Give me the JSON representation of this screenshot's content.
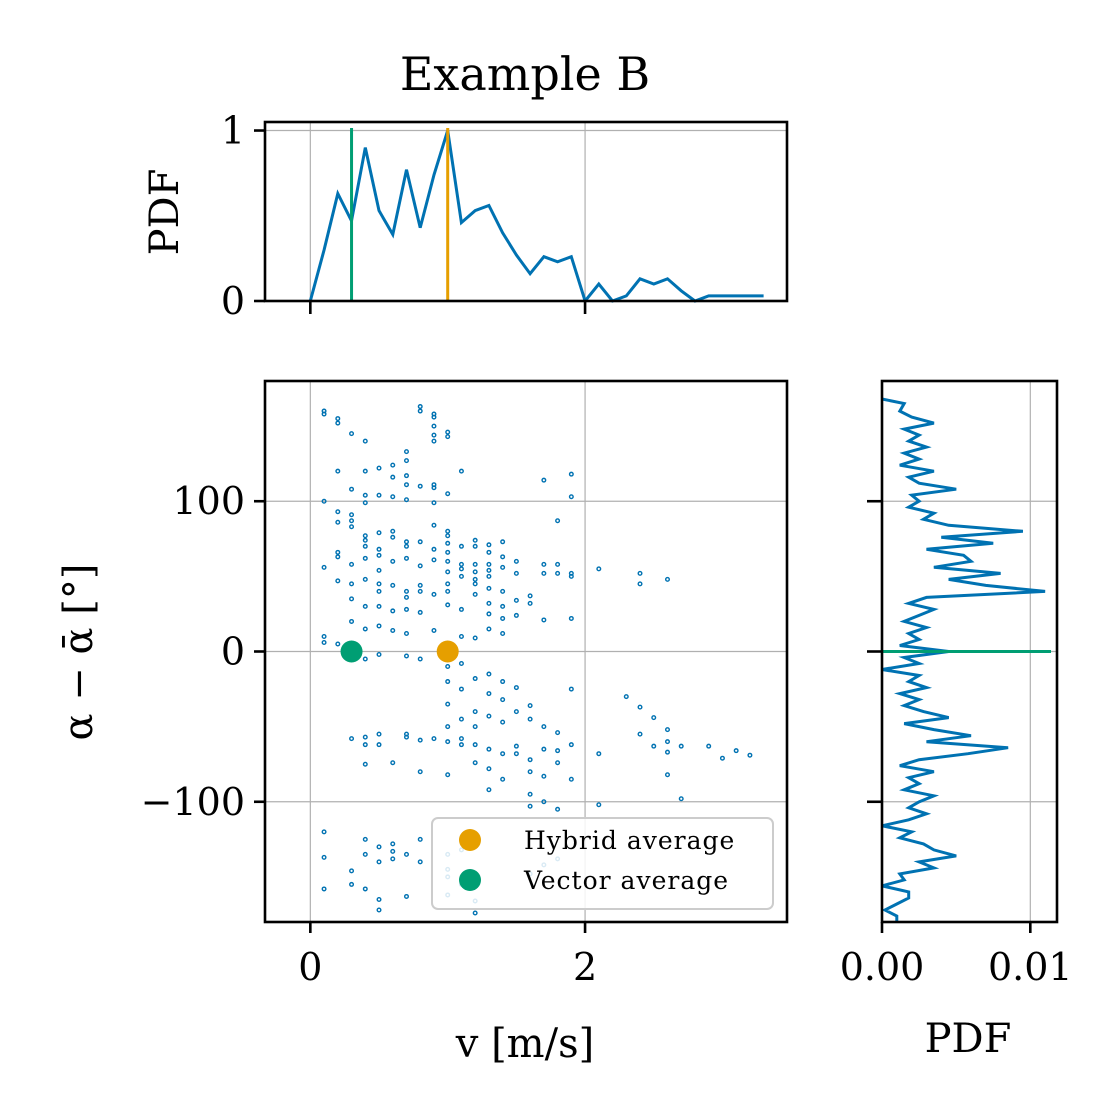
{
  "colors": {
    "scatter": "#0072B2",
    "hybrid": "#E69F00",
    "vector": "#009E73"
  },
  "chart_data": {
    "type": "scatter",
    "title": "Example B",
    "main": {
      "xlabel": "v [m/s]",
      "ylabel": "α − ᾱ [°]",
      "xlim": [
        -0.33,
        3.47
      ],
      "ylim": [
        -180,
        180
      ],
      "xticks": [
        0,
        2
      ],
      "yticks": [
        -100,
        0,
        100
      ],
      "xtick_labels": [
        "0",
        "2"
      ],
      "ytick_labels": [
        "−100",
        "0",
        "100"
      ],
      "points": [
        [
          0.1,
          160
        ],
        [
          0.1,
          158
        ],
        [
          0.2,
          155
        ],
        [
          0.2,
          152
        ],
        [
          0.3,
          145
        ],
        [
          0.4,
          140
        ],
        [
          0.8,
          163
        ],
        [
          0.8,
          160
        ],
        [
          0.9,
          158
        ],
        [
          0.9,
          156
        ],
        [
          0.9,
          150
        ],
        [
          0.9,
          144
        ],
        [
          0.9,
          140
        ],
        [
          1.0,
          146
        ],
        [
          1.0,
          143
        ],
        [
          0.7,
          133
        ],
        [
          0.7,
          127
        ],
        [
          0.2,
          120
        ],
        [
          0.4,
          120
        ],
        [
          0.5,
          122
        ],
        [
          0.6,
          124
        ],
        [
          0.6,
          116
        ],
        [
          0.7,
          117
        ],
        [
          0.7,
          111
        ],
        [
          0.8,
          110
        ],
        [
          0.9,
          111
        ],
        [
          0.9,
          109
        ],
        [
          1.1,
          120
        ],
        [
          1.0,
          105
        ],
        [
          0.3,
          108
        ],
        [
          0.4,
          104
        ],
        [
          0.4,
          99
        ],
        [
          0.5,
          104
        ],
        [
          0.6,
          103
        ],
        [
          0.7,
          101
        ],
        [
          0.9,
          99
        ],
        [
          1.9,
          118
        ],
        [
          1.7,
          114
        ],
        [
          1.9,
          103
        ],
        [
          1.8,
          87
        ],
        [
          0.1,
          100
        ],
        [
          0.2,
          93
        ],
        [
          0.3,
          91
        ],
        [
          0.3,
          87
        ],
        [
          0.2,
          86
        ],
        [
          0.3,
          83
        ],
        [
          0.4,
          77
        ],
        [
          0.4,
          74
        ],
        [
          0.4,
          70
        ],
        [
          0.5,
          79
        ],
        [
          0.5,
          68
        ],
        [
          0.6,
          80
        ],
        [
          0.6,
          76
        ],
        [
          0.7,
          73
        ],
        [
          0.7,
          70
        ],
        [
          0.8,
          73
        ],
        [
          0.9,
          84
        ],
        [
          1.0,
          80
        ],
        [
          1.0,
          77
        ],
        [
          1.0,
          72
        ],
        [
          0.9,
          68
        ],
        [
          1.0,
          66
        ],
        [
          1.1,
          70
        ],
        [
          1.2,
          70
        ],
        [
          1.2,
          74
        ],
        [
          1.3,
          71
        ],
        [
          1.4,
          73
        ],
        [
          1.3,
          66
        ],
        [
          1.4,
          63
        ],
        [
          1.5,
          60
        ],
        [
          0.2,
          66
        ],
        [
          0.2,
          63
        ],
        [
          0.3,
          58
        ],
        [
          0.4,
          62
        ],
        [
          0.5,
          64
        ],
        [
          0.5,
          54
        ],
        [
          0.6,
          60
        ],
        [
          0.7,
          62
        ],
        [
          0.8,
          57
        ],
        [
          0.9,
          61
        ],
        [
          1.0,
          60
        ],
        [
          1.0,
          53
        ],
        [
          1.1,
          58
        ],
        [
          1.1,
          55
        ],
        [
          1.2,
          58
        ],
        [
          1.2,
          53
        ],
        [
          1.3,
          58
        ],
        [
          1.3,
          54
        ],
        [
          1.4,
          56
        ],
        [
          1.2,
          48
        ],
        [
          1.1,
          50
        ],
        [
          1.3,
          50
        ],
        [
          1.5,
          52
        ],
        [
          1.7,
          58
        ],
        [
          1.8,
          58
        ],
        [
          1.7,
          52
        ],
        [
          1.8,
          52
        ],
        [
          1.9,
          50
        ],
        [
          1.9,
          52
        ],
        [
          2.1,
          55
        ],
        [
          2.4,
          52
        ],
        [
          2.4,
          45
        ],
        [
          2.6,
          48
        ],
        [
          0.1,
          56
        ],
        [
          0.2,
          47
        ],
        [
          0.3,
          45
        ],
        [
          0.4,
          48
        ],
        [
          0.5,
          45
        ],
        [
          0.5,
          40
        ],
        [
          0.6,
          44
        ],
        [
          0.7,
          40
        ],
        [
          0.7,
          36
        ],
        [
          0.8,
          44
        ],
        [
          0.8,
          40
        ],
        [
          0.9,
          38
        ],
        [
          1.0,
          45
        ],
        [
          1.0,
          40
        ],
        [
          1.2,
          45
        ],
        [
          1.2,
          38
        ],
        [
          1.3,
          42
        ],
        [
          1.4,
          40
        ],
        [
          1.3,
          32
        ],
        [
          1.4,
          30
        ],
        [
          1.5,
          34
        ],
        [
          1.6,
          37
        ],
        [
          1.6,
          32
        ],
        [
          0.3,
          35
        ],
        [
          0.4,
          30
        ],
        [
          0.5,
          30
        ],
        [
          0.6,
          27
        ],
        [
          0.7,
          28
        ],
        [
          0.8,
          26
        ],
        [
          1.0,
          31
        ],
        [
          1.1,
          28
        ],
        [
          1.3,
          25
        ],
        [
          1.4,
          22
        ],
        [
          1.5,
          24
        ],
        [
          1.7,
          21
        ],
        [
          1.9,
          22
        ],
        [
          0.3,
          20
        ],
        [
          0.4,
          15
        ],
        [
          0.5,
          17
        ],
        [
          0.6,
          14
        ],
        [
          0.7,
          12
        ],
        [
          0.9,
          14
        ],
        [
          1.1,
          10
        ],
        [
          1.2,
          9
        ],
        [
          1.3,
          15
        ],
        [
          1.4,
          12
        ],
        [
          0.1,
          10
        ],
        [
          0.2,
          5
        ],
        [
          0.1,
          6
        ],
        [
          0.3,
          2
        ],
        [
          0.4,
          -5
        ],
        [
          0.5,
          -2
        ],
        [
          0.7,
          -3
        ],
        [
          0.8,
          -5
        ],
        [
          1.0,
          -10
        ],
        [
          1.1,
          -8
        ],
        [
          1.0,
          -20
        ],
        [
          1.1,
          -25
        ],
        [
          1.2,
          -18
        ],
        [
          1.3,
          -15
        ],
        [
          1.4,
          -20
        ],
        [
          1.3,
          -28
        ],
        [
          1.4,
          -32
        ],
        [
          1.5,
          -24
        ],
        [
          1.6,
          -36
        ],
        [
          1.5,
          -40
        ],
        [
          1.9,
          -25
        ],
        [
          1.6,
          -45
        ],
        [
          1.7,
          -50
        ],
        [
          1.8,
          -54
        ],
        [
          2.3,
          -30
        ],
        [
          2.4,
          -37
        ],
        [
          2.5,
          -44
        ],
        [
          2.6,
          -52
        ],
        [
          2.4,
          -55
        ],
        [
          1.0,
          -35
        ],
        [
          1.2,
          -40
        ],
        [
          1.1,
          -45
        ],
        [
          1.0,
          -50
        ],
        [
          1.2,
          -50
        ],
        [
          1.3,
          -43
        ],
        [
          1.4,
          -47
        ],
        [
          0.3,
          -58
        ],
        [
          0.4,
          -57
        ],
        [
          0.4,
          -62
        ],
        [
          0.5,
          -55
        ],
        [
          0.5,
          -62
        ],
        [
          0.7,
          -55
        ],
        [
          0.7,
          -57
        ],
        [
          0.8,
          -59
        ],
        [
          0.9,
          -58
        ],
        [
          1.0,
          -60
        ],
        [
          1.1,
          -58
        ],
        [
          1.1,
          -62
        ],
        [
          1.2,
          -62
        ],
        [
          1.3,
          -65
        ],
        [
          1.4,
          -68
        ],
        [
          1.5,
          -63
        ],
        [
          1.5,
          -68
        ],
        [
          1.6,
          -72
        ],
        [
          1.7,
          -65
        ],
        [
          1.8,
          -66
        ],
        [
          1.9,
          -62
        ],
        [
          2.1,
          -68
        ],
        [
          2.5,
          -63
        ],
        [
          2.6,
          -60
        ],
        [
          2.6,
          -67
        ],
        [
          2.7,
          -63
        ],
        [
          2.9,
          -63
        ],
        [
          3.0,
          -71
        ],
        [
          3.1,
          -66
        ],
        [
          3.2,
          -69
        ],
        [
          0.4,
          -75
        ],
        [
          0.6,
          -74
        ],
        [
          0.8,
          -80
        ],
        [
          1.0,
          -82
        ],
        [
          1.2,
          -74
        ],
        [
          1.3,
          -78
        ],
        [
          1.4,
          -85
        ],
        [
          1.6,
          -80
        ],
        [
          1.7,
          -83
        ],
        [
          1.8,
          -74
        ],
        [
          1.9,
          -85
        ],
        [
          2.6,
          -82
        ],
        [
          1.3,
          -92
        ],
        [
          1.6,
          -95
        ],
        [
          1.7,
          -100
        ],
        [
          1.6,
          -103
        ],
        [
          1.8,
          -105
        ],
        [
          2.1,
          -102
        ],
        [
          2.7,
          -98
        ],
        [
          0.1,
          -120
        ],
        [
          0.4,
          -125
        ],
        [
          0.5,
          -130
        ],
        [
          0.6,
          -128
        ],
        [
          0.7,
          -135
        ],
        [
          0.8,
          -125
        ],
        [
          1.0,
          -135
        ],
        [
          1.1,
          -132
        ],
        [
          0.4,
          -135
        ],
        [
          0.5,
          -140
        ],
        [
          0.6,
          -133
        ],
        [
          0.6,
          -138
        ],
        [
          0.8,
          -140
        ],
        [
          1.0,
          -145
        ],
        [
          1.0,
          -150
        ],
        [
          1.7,
          -142
        ],
        [
          1.8,
          -138
        ],
        [
          1.6,
          -148
        ],
        [
          0.1,
          -137
        ],
        [
          0.3,
          -146
        ],
        [
          0.1,
          -158
        ],
        [
          0.3,
          -155
        ],
        [
          0.4,
          -158
        ],
        [
          0.5,
          -165
        ],
        [
          0.7,
          -163
        ],
        [
          1.0,
          -162
        ],
        [
          1.1,
          -155
        ],
        [
          1.2,
          -166
        ],
        [
          0.5,
          -172
        ],
        [
          1.2,
          -174
        ]
      ],
      "hybrid_average": [
        1.0,
        0
      ],
      "vector_average": [
        0.3,
        0
      ],
      "legend": {
        "location": "lower-right",
        "entries": [
          "Hybrid average",
          "Vector average"
        ]
      }
    },
    "top_pdf": {
      "ylabel": "PDF",
      "ylim": [
        0,
        1.05
      ],
      "yticks": [
        0,
        1
      ],
      "ytick_labels": [
        "0",
        "1"
      ],
      "x": [
        0.0,
        0.1,
        0.2,
        0.3,
        0.4,
        0.5,
        0.6,
        0.7,
        0.8,
        0.9,
        1.0,
        1.1,
        1.2,
        1.3,
        1.4,
        1.5,
        1.6,
        1.7,
        1.8,
        1.9,
        2.0,
        2.1,
        2.2,
        2.3,
        2.4,
        2.5,
        2.6,
        2.7,
        2.8,
        2.9,
        3.0,
        3.1,
        3.2,
        3.3
      ],
      "y": [
        0.0,
        0.3,
        0.63,
        0.47,
        0.9,
        0.53,
        0.39,
        0.77,
        0.43,
        0.74,
        1.0,
        0.46,
        0.53,
        0.56,
        0.4,
        0.27,
        0.16,
        0.26,
        0.23,
        0.26,
        0.0,
        0.1,
        0.0,
        0.03,
        0.13,
        0.1,
        0.13,
        0.06,
        0.0,
        0.03,
        0.03,
        0.03,
        0.03,
        0.03
      ],
      "hybrid_line_x": 1.0,
      "vector_line_x": 0.3
    },
    "right_pdf": {
      "xlabel": "PDF",
      "xlim": [
        0,
        0.0118
      ],
      "xticks": [
        0.0,
        0.01
      ],
      "xtick_labels": [
        "0.00",
        "0.01"
      ],
      "alpha": [
        168,
        165,
        160,
        156,
        152,
        148,
        144,
        140,
        136,
        132,
        128,
        124,
        120,
        116,
        112,
        108,
        104,
        100,
        96,
        92,
        88,
        84,
        80,
        76,
        72,
        68,
        64,
        60,
        56,
        52,
        48,
        44,
        40,
        36,
        32,
        28,
        24,
        20,
        16,
        12,
        8,
        4,
        0,
        -4,
        -8,
        -12,
        -16,
        -20,
        -24,
        -28,
        -32,
        -36,
        -40,
        -44,
        -48,
        -52,
        -56,
        -60,
        -64,
        -68,
        -72,
        -76,
        -80,
        -84,
        -88,
        -92,
        -96,
        -100,
        -104,
        -108,
        -112,
        -116,
        -120,
        -124,
        -128,
        -132,
        -136,
        -140,
        -144,
        -148,
        -152,
        -156,
        -160,
        -164,
        -168,
        -172,
        -176,
        -180
      ],
      "pdf": [
        0.0,
        0.0015,
        0.0012,
        0.002,
        0.0035,
        0.0015,
        0.0025,
        0.0018,
        0.003,
        0.0015,
        0.0025,
        0.0012,
        0.0035,
        0.0018,
        0.0025,
        0.005,
        0.002,
        0.0025,
        0.0018,
        0.0035,
        0.0028,
        0.0045,
        0.0095,
        0.004,
        0.0075,
        0.003,
        0.0055,
        0.006,
        0.0035,
        0.008,
        0.0045,
        0.007,
        0.011,
        0.003,
        0.0018,
        0.0035,
        0.0025,
        0.0015,
        0.003,
        0.0018,
        0.0025,
        0.0012,
        0.0045,
        0.0015,
        0.0025,
        0.0,
        0.0025,
        0.0018,
        0.003,
        0.0012,
        0.0025,
        0.0015,
        0.0028,
        0.0045,
        0.0015,
        0.0035,
        0.006,
        0.003,
        0.0085,
        0.0058,
        0.0025,
        0.0012,
        0.0035,
        0.0018,
        0.0025,
        0.0015,
        0.0035,
        0.0025,
        0.0018,
        0.003,
        0.0018,
        0.0,
        0.002,
        0.0012,
        0.0028,
        0.0035,
        0.005,
        0.0025,
        0.0035,
        0.0012,
        0.0015,
        0.0,
        0.0018,
        0.0018,
        0.001,
        0.0002,
        0.001,
        0.001
      ],
      "vector_line_alpha": 0
    }
  }
}
